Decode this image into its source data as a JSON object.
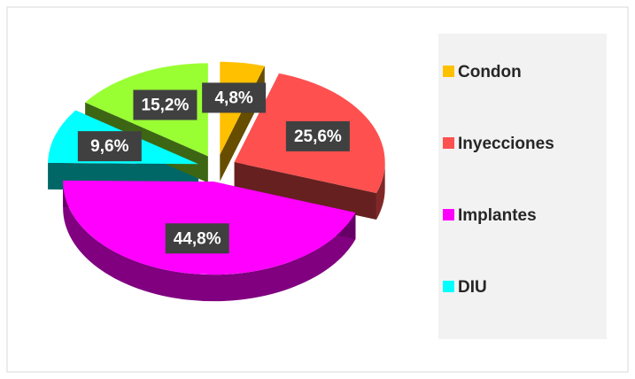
{
  "chart_data": {
    "type": "pie",
    "categories": [
      "Condon",
      "Inyecciones",
      "Implantes",
      "DIU",
      null
    ],
    "values": [
      4.8,
      25.6,
      44.8,
      9.6,
      15.2
    ],
    "value_labels": [
      "4,8%",
      "25,6%",
      "44,8%",
      "9,6%",
      "15,2%"
    ],
    "colors": [
      "#ffc000",
      "#ff5050",
      "#ff00ff",
      "#00ffff",
      "#99ff33"
    ],
    "legend": "right"
  }
}
